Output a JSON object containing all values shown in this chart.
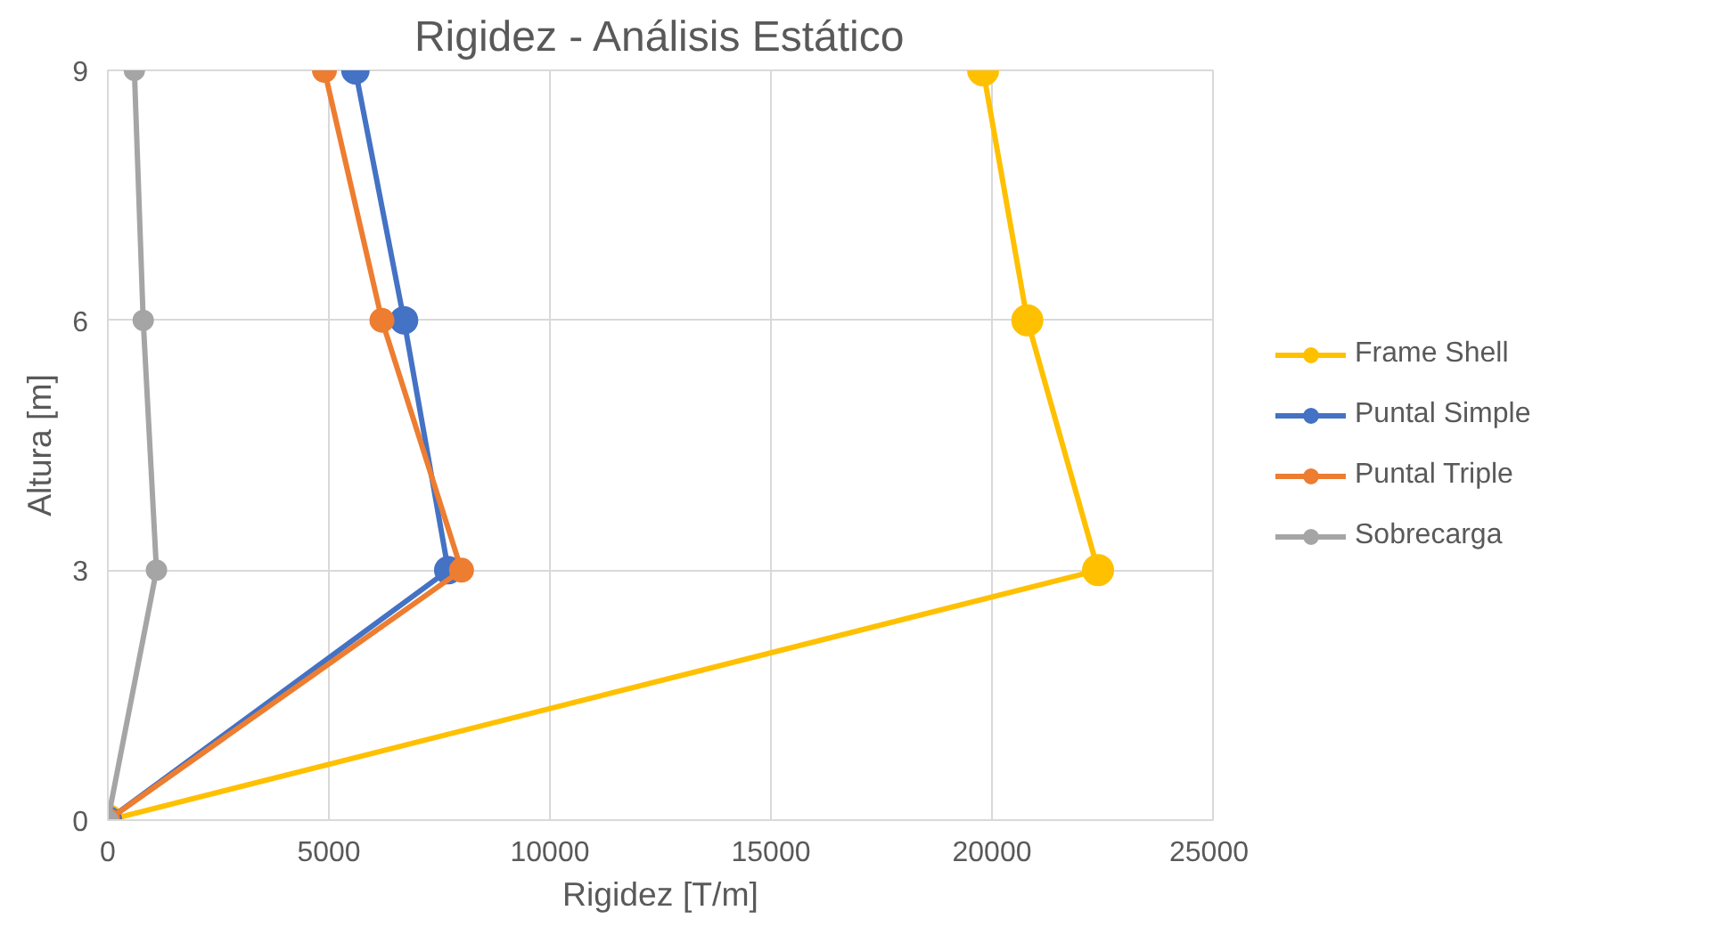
{
  "chart_data": {
    "type": "line",
    "title": "Rigidez - Análisis Estático",
    "xlabel": "Rigidez [T/m]",
    "ylabel": "Altura [m]",
    "series": [
      {
        "name": "Frame Shell",
        "color": "#ffc000",
        "x": [
          0,
          22400,
          20800,
          19800
        ],
        "values": [
          0,
          3,
          6,
          9
        ]
      },
      {
        "name": "Puntal Simple",
        "color": "#4472c4",
        "x": [
          0,
          7700,
          6700,
          5600
        ],
        "values": [
          0,
          3,
          6,
          9
        ]
      },
      {
        "name": "Puntal Triple",
        "color": "#ed7d31",
        "x": [
          0,
          8000,
          6200,
          4900
        ],
        "values": [
          0,
          3,
          6,
          9
        ]
      },
      {
        "name": "Sobrecarga",
        "color": "#a5a5a5",
        "x": [
          0,
          1100,
          800,
          600
        ],
        "values": [
          0,
          3,
          6,
          9
        ]
      }
    ],
    "xlim": [
      0,
      25000
    ],
    "xticks": [
      0,
      5000,
      10000,
      15000,
      20000,
      25000
    ],
    "ylim": [
      0,
      9
    ],
    "yticks": [
      0,
      3,
      6,
      9
    ],
    "grid": true,
    "legend": "right",
    "marker": "circle",
    "line_style": "solid"
  }
}
